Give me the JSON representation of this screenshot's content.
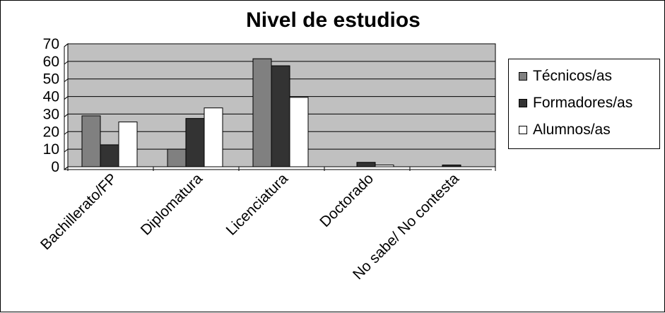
{
  "chart_data": {
    "type": "bar",
    "title": "Nivel de estudios",
    "xlabel": "",
    "ylabel": "",
    "categories": [
      "Bachillerato/FP",
      "Diplomatura",
      "Licenciatura",
      "Doctorado",
      "No sabe/ No contesta"
    ],
    "series": [
      {
        "name": "Técnicos/as",
        "color": "#808080",
        "values": [
          29,
          10,
          61.5,
          0,
          0
        ]
      },
      {
        "name": "Formadores/as",
        "color": "#333333",
        "values": [
          12.5,
          27.5,
          57.5,
          2.5,
          1
        ]
      },
      {
        "name": "Alumnos/as",
        "color": "#ffffff",
        "values": [
          25.5,
          33.5,
          39.5,
          1,
          0
        ]
      }
    ],
    "ylim": [
      0,
      70
    ],
    "yticks": [
      "0",
      "10",
      "20",
      "30",
      "40",
      "50",
      "60",
      "70"
    ],
    "grid": true,
    "plot_background": "#c0c0c0",
    "legend_position": "right"
  }
}
